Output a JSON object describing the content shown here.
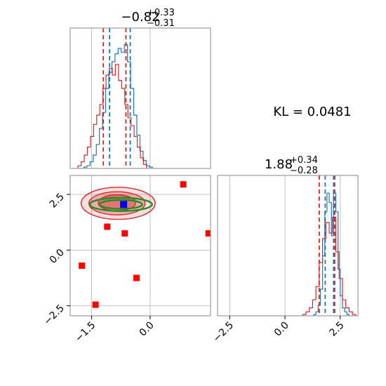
{
  "chart_data": [
    {
      "type": "histogram",
      "panel": "marginal-x",
      "title": {
        "median": "−0.82",
        "plus": "+0.33",
        "minus": "−0.31"
      },
      "xlim": [
        -2.05,
        1.55
      ],
      "quantile_lines": {
        "blue": [
          -1.04,
          -0.51
        ],
        "red": [
          -1.2,
          -0.62
        ]
      },
      "series": [
        {
          "color": "#1f77b4",
          "bins": [
            -1.7,
            -1.62,
            -1.54,
            -1.46,
            -1.38,
            -1.3,
            -1.22,
            -1.14,
            -1.06,
            -0.98,
            -0.9,
            -0.82,
            -0.74,
            -0.66,
            -0.58,
            -0.5,
            -0.42,
            -0.34,
            -0.26,
            -0.18,
            -0.1,
            -0.02
          ],
          "heights": [
            0.01,
            0.02,
            0.05,
            0.1,
            0.18,
            0.3,
            0.42,
            0.6,
            0.72,
            0.8,
            0.86,
            0.9,
            0.87,
            0.93,
            0.8,
            0.6,
            0.4,
            0.25,
            0.13,
            0.06,
            0.02,
            0.01
          ]
        },
        {
          "color": "#d62728",
          "bins": [
            -1.85,
            -1.77,
            -1.69,
            -1.61,
            -1.53,
            -1.45,
            -1.37,
            -1.29,
            -1.21,
            -1.13,
            -1.05,
            -0.97,
            -0.89,
            -0.81,
            -0.73,
            -0.65,
            -0.57,
            -0.49,
            -0.41,
            -0.33,
            -0.25,
            -0.17
          ],
          "heights": [
            0.02,
            0.05,
            0.1,
            0.16,
            0.24,
            0.33,
            0.4,
            0.48,
            0.6,
            0.7,
            0.75,
            0.7,
            0.78,
            0.66,
            0.6,
            0.48,
            0.38,
            0.32,
            0.24,
            0.16,
            0.08,
            0.03
          ]
        }
      ]
    },
    {
      "type": "scatter",
      "panel": "joint",
      "xlim": [
        -2.05,
        1.55
      ],
      "ylim": [
        -2.95,
        3.35
      ],
      "x_ticks": [
        "−1.5",
        "0.0"
      ],
      "y_ticks": [
        "−2.5",
        "0.0",
        "2.5"
      ],
      "red_points": [
        [
          0.85,
          2.95
        ],
        [
          -1.1,
          1.05
        ],
        [
          -0.65,
          0.75
        ],
        [
          1.5,
          0.75
        ],
        [
          -1.75,
          -0.7
        ],
        [
          -0.35,
          -1.25
        ],
        [
          -1.4,
          -2.45
        ]
      ],
      "blue_point": [
        -0.68,
        2.05
      ],
      "red_contours": [
        {
          "cx": -0.82,
          "cy": 2.1,
          "rx": 0.95,
          "ry": 0.72
        },
        {
          "cx": -0.85,
          "cy": 2.1,
          "rx": 0.72,
          "ry": 0.52
        },
        {
          "cx": -0.85,
          "cy": 2.12,
          "rx": 0.48,
          "ry": 0.36
        }
      ],
      "green_contours": [
        {
          "cx": -0.75,
          "cy": 2.05,
          "rx": 0.8,
          "ry": 0.3
        },
        {
          "cx": -0.75,
          "cy": 2.05,
          "rx": 0.55,
          "ry": 0.2
        }
      ]
    },
    {
      "type": "histogram",
      "panel": "marginal-y",
      "title": {
        "median": "1.88",
        "plus": "+0.34",
        "minus": "−0.28"
      },
      "xlim": [
        -3.05,
        3.3
      ],
      "x_ticks": [
        "−2.5",
        "0.0",
        "2.5"
      ],
      "quantile_lines": {
        "blue": [
          1.82,
          2.2
        ],
        "red": [
          1.55,
          2.25
        ]
      },
      "series": [
        {
          "color": "#1f77b4",
          "bins": [
            1.3,
            1.4,
            1.5,
            1.6,
            1.7,
            1.8,
            1.9,
            2.0,
            2.1,
            2.2,
            2.3,
            2.4,
            2.5,
            2.6,
            2.7,
            2.8
          ],
          "heights": [
            0.01,
            0.03,
            0.08,
            0.2,
            0.45,
            0.78,
            0.92,
            0.85,
            0.6,
            0.92,
            0.78,
            0.35,
            0.15,
            0.06,
            0.03,
            0.01
          ]
        },
        {
          "color": "#d62728",
          "bins": [
            0.8,
            0.95,
            1.1,
            1.25,
            1.4,
            1.55,
            1.7,
            1.85,
            2.0,
            2.15,
            2.3,
            2.45,
            2.6,
            2.75,
            2.9,
            3.05
          ],
          "heights": [
            0.01,
            0.03,
            0.06,
            0.12,
            0.22,
            0.4,
            0.58,
            0.7,
            0.62,
            0.74,
            0.48,
            0.28,
            0.12,
            0.06,
            0.03,
            0.01
          ]
        }
      ]
    }
  ],
  "annotation": {
    "kl_text": "KL = 0.0481"
  },
  "colors": {
    "blue": "#1f77b4",
    "red": "#d62728",
    "green": "#228b22",
    "marker_blue": "#0000ff",
    "marker_red": "#ff0000",
    "grid": "#b0b0b0"
  }
}
